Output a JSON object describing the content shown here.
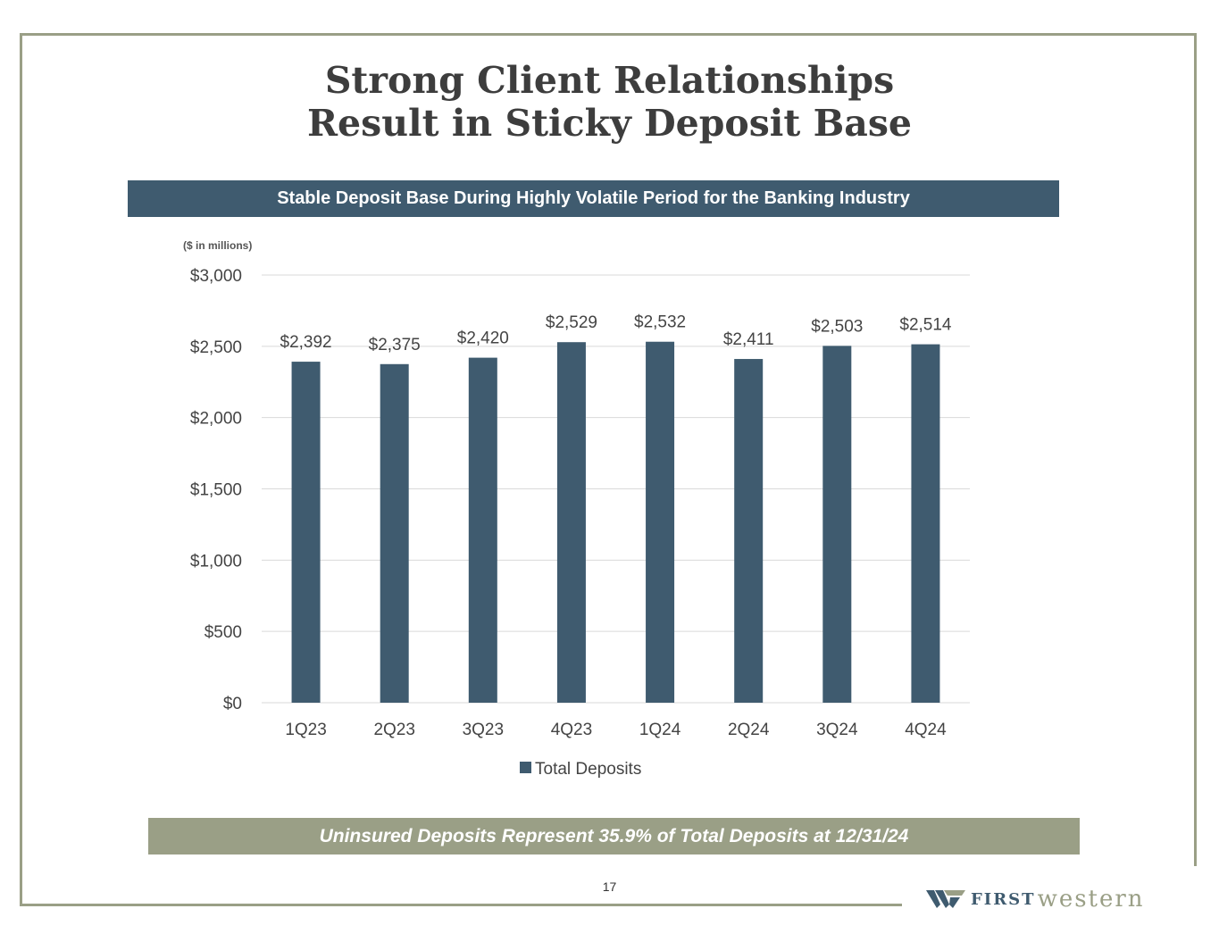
{
  "header": {
    "title_line1": "Strong Client Relationships",
    "title_line2": "Result in Sticky Deposit Base"
  },
  "subheader": "Stable Deposit Base During Highly Volatile Period for the Banking Industry",
  "units_note": "($ in millions)",
  "chart_data": {
    "type": "bar",
    "categories": [
      "1Q23",
      "2Q23",
      "3Q23",
      "4Q23",
      "1Q24",
      "2Q24",
      "3Q24",
      "4Q24"
    ],
    "series": [
      {
        "name": "Total Deposits",
        "values": [
          2392,
          2375,
          2420,
          2529,
          2532,
          2411,
          2503,
          2514
        ]
      }
    ],
    "data_labels": [
      "$2,392",
      "$2,375",
      "$2,420",
      "$2,529",
      "$2,532",
      "$2,411",
      "$2,503",
      "$2,514"
    ],
    "y_ticks": [
      0,
      500,
      1000,
      1500,
      2000,
      2500,
      3000
    ],
    "y_tick_labels": [
      "$0",
      "$500",
      "$1,000",
      "$1,500",
      "$2,000",
      "$2,500",
      "$3,000"
    ],
    "ylim": [
      0,
      3000
    ],
    "grid": true,
    "legend_position": "bottom",
    "bar_color": "#3f5b6f",
    "grid_color": "#d9d9d9"
  },
  "footer_note": "Uninsured Deposits Represent 35.9% of Total Deposits at 12/31/24",
  "page_number": "17",
  "logo": {
    "first": "FIRST",
    "western": "western",
    "icon": "first-western-logo-mark"
  },
  "colors": {
    "primary": "#3f5b6f",
    "accent": "#9a9f86",
    "title": "#3d3d3d"
  }
}
